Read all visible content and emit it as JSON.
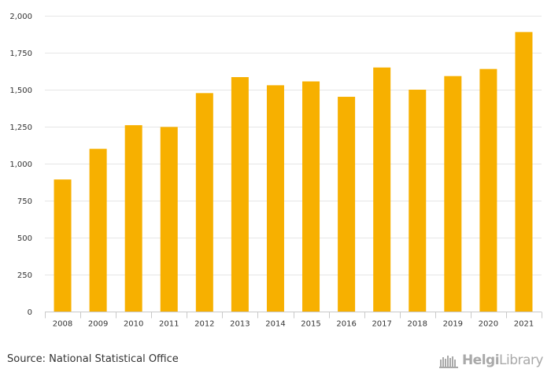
{
  "chart_data": {
    "type": "bar",
    "categories": [
      "2008",
      "2009",
      "2010",
      "2011",
      "2012",
      "2013",
      "2014",
      "2015",
      "2016",
      "2017",
      "2018",
      "2019",
      "2020",
      "2021"
    ],
    "values": [
      893,
      1100,
      1260,
      1248,
      1477,
      1585,
      1530,
      1556,
      1452,
      1650,
      1500,
      1592,
      1640,
      1890
    ],
    "title": "",
    "xlabel": "",
    "ylabel": "",
    "ylim": [
      0,
      2000
    ],
    "yticks": [
      0,
      250,
      500,
      750,
      1000,
      1250,
      1500,
      1750,
      2000
    ],
    "ytick_labels": [
      "0",
      "250",
      "500",
      "750",
      "1,000",
      "1,250",
      "1,500",
      "1,750",
      "2,000"
    ],
    "grid": true,
    "legend": "none"
  },
  "colors": {
    "bar": "#f7b000",
    "grid": "#e6e6e6",
    "axis": "#c9c9c9",
    "text": "#333333",
    "brand": "#a9a9a9"
  },
  "footer": {
    "source": "Source: National Statistical Office",
    "brand_bold": "Helgi",
    "brand_light": "Library"
  }
}
